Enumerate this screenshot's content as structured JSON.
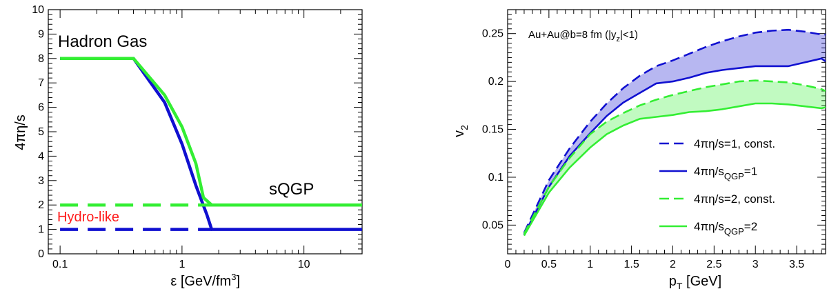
{
  "colors": {
    "blue": "#1010d0",
    "green": "#33ee33",
    "red": "#ff1a1a",
    "frame": "#000000"
  },
  "chart_data": [
    {
      "type": "line",
      "xscale": "log",
      "xlabel": "ε [GeV/fm",
      "xlabel_sup": "3",
      "xlabel_tail": "]",
      "ylabel": "4πη/s",
      "xlim": [
        0.08,
        30
      ],
      "ylim": [
        0,
        10
      ],
      "x_ticks": [
        {
          "v": 0.1,
          "label": "0.1"
        },
        {
          "v": 1,
          "label": "1"
        },
        {
          "v": 10,
          "label": "10"
        }
      ],
      "y_ticks": [
        {
          "v": 0,
          "label": "0"
        },
        {
          "v": 1,
          "label": "1"
        },
        {
          "v": 2,
          "label": "2"
        },
        {
          "v": 3,
          "label": "3"
        },
        {
          "v": 4,
          "label": "4"
        },
        {
          "v": 5,
          "label": "5"
        },
        {
          "v": 6,
          "label": "6"
        },
        {
          "v": 7,
          "label": "7"
        },
        {
          "v": 8,
          "label": "8"
        },
        {
          "v": 9,
          "label": "9"
        },
        {
          "v": 10,
          "label": "10"
        }
      ],
      "annotations": {
        "hadron_gas": "Hadron Gas",
        "sqgp": "sQGP",
        "hydro_like": "Hydro-like"
      },
      "series": [
        {
          "color": "blue",
          "style": "solid",
          "x": [
            0.1,
            0.4,
            0.72,
            1.0,
            1.3,
            1.6,
            1.75,
            30
          ],
          "y": [
            8,
            8,
            6.2,
            4.5,
            2.8,
            1.6,
            1.0,
            1.0
          ]
        },
        {
          "color": "green",
          "style": "solid",
          "x": [
            0.1,
            0.4,
            0.72,
            1.0,
            1.3,
            1.5,
            1.75,
            30
          ],
          "y": [
            8,
            8,
            6.5,
            5.2,
            3.7,
            2.3,
            2.0,
            2.0
          ]
        },
        {
          "color": "green",
          "style": "dashed",
          "x": [
            0.1,
            1.75
          ],
          "y": [
            2,
            2
          ]
        },
        {
          "color": "blue",
          "style": "dashed",
          "x": [
            0.1,
            1.75
          ],
          "y": [
            1,
            1
          ]
        }
      ]
    },
    {
      "type": "line",
      "xlabel": "p",
      "xlabel_sub": "T",
      "xlabel_tail": " [GeV]",
      "ylabel": "v",
      "ylabel_sub": "2",
      "xlim": [
        0,
        3.85
      ],
      "ylim": [
        0.02,
        0.275
      ],
      "x_ticks": [
        {
          "v": 0,
          "label": "0"
        },
        {
          "v": 0.5,
          "label": "0.5"
        },
        {
          "v": 1,
          "label": "1"
        },
        {
          "v": 1.5,
          "label": "1.5"
        },
        {
          "v": 2,
          "label": "2"
        },
        {
          "v": 2.5,
          "label": "2.5"
        },
        {
          "v": 3,
          "label": "3"
        },
        {
          "v": 3.5,
          "label": "3.5"
        }
      ],
      "y_ticks": [
        {
          "v": 0.05,
          "label": "0.05"
        },
        {
          "v": 0.1,
          "label": "0.1"
        },
        {
          "v": 0.15,
          "label": "0.15"
        },
        {
          "v": 0.2,
          "label": "0.2"
        },
        {
          "v": 0.25,
          "label": "0.25"
        }
      ],
      "annotation": "Au+Au@b=8 fm (|y",
      "annotation_sub": "z",
      "annotation_tail": "|<1)",
      "legend_position": "lower-right",
      "legend": [
        {
          "color": "blue",
          "style": "dashed",
          "label": "4πη/s=1, const.",
          "sub": "",
          "tail": ""
        },
        {
          "color": "blue",
          "style": "solid",
          "label": "4πη/s",
          "sub": "QGP",
          "tail": "=1"
        },
        {
          "color": "green",
          "style": "dashed",
          "label": "4πη/s=2, const.",
          "sub": "",
          "tail": ""
        },
        {
          "color": "green",
          "style": "solid",
          "label": "4πη/s",
          "sub": "QGP",
          "tail": "=2"
        }
      ],
      "x": [
        0.2,
        0.5,
        0.75,
        1.0,
        1.2,
        1.4,
        1.6,
        1.8,
        2.0,
        2.2,
        2.4,
        2.6,
        2.8,
        3.0,
        3.2,
        3.4,
        3.6,
        3.8,
        3.85
      ],
      "series": [
        {
          "color": "blue",
          "style": "dashed",
          "y": [
            0.042,
            0.097,
            0.13,
            0.158,
            0.177,
            0.193,
            0.206,
            0.216,
            0.222,
            0.229,
            0.236,
            0.242,
            0.247,
            0.251,
            0.253,
            0.254,
            0.252,
            0.249,
            0.249
          ]
        },
        {
          "color": "blue",
          "style": "solid",
          "y": [
            0.04,
            0.09,
            0.122,
            0.146,
            0.164,
            0.178,
            0.188,
            0.198,
            0.2,
            0.204,
            0.209,
            0.212,
            0.214,
            0.216,
            0.216,
            0.216,
            0.22,
            0.224,
            0.221
          ]
        },
        {
          "color": "green",
          "style": "dashed",
          "y": [
            0.041,
            0.09,
            0.12,
            0.145,
            0.158,
            0.167,
            0.175,
            0.181,
            0.186,
            0.19,
            0.194,
            0.197,
            0.2,
            0.201,
            0.2,
            0.199,
            0.196,
            0.192,
            0.19
          ]
        },
        {
          "color": "green",
          "style": "solid",
          "y": [
            0.039,
            0.084,
            0.11,
            0.131,
            0.145,
            0.154,
            0.161,
            0.163,
            0.165,
            0.168,
            0.169,
            0.171,
            0.174,
            0.177,
            0.177,
            0.176,
            0.174,
            0.172,
            0.173
          ]
        }
      ]
    }
  ]
}
